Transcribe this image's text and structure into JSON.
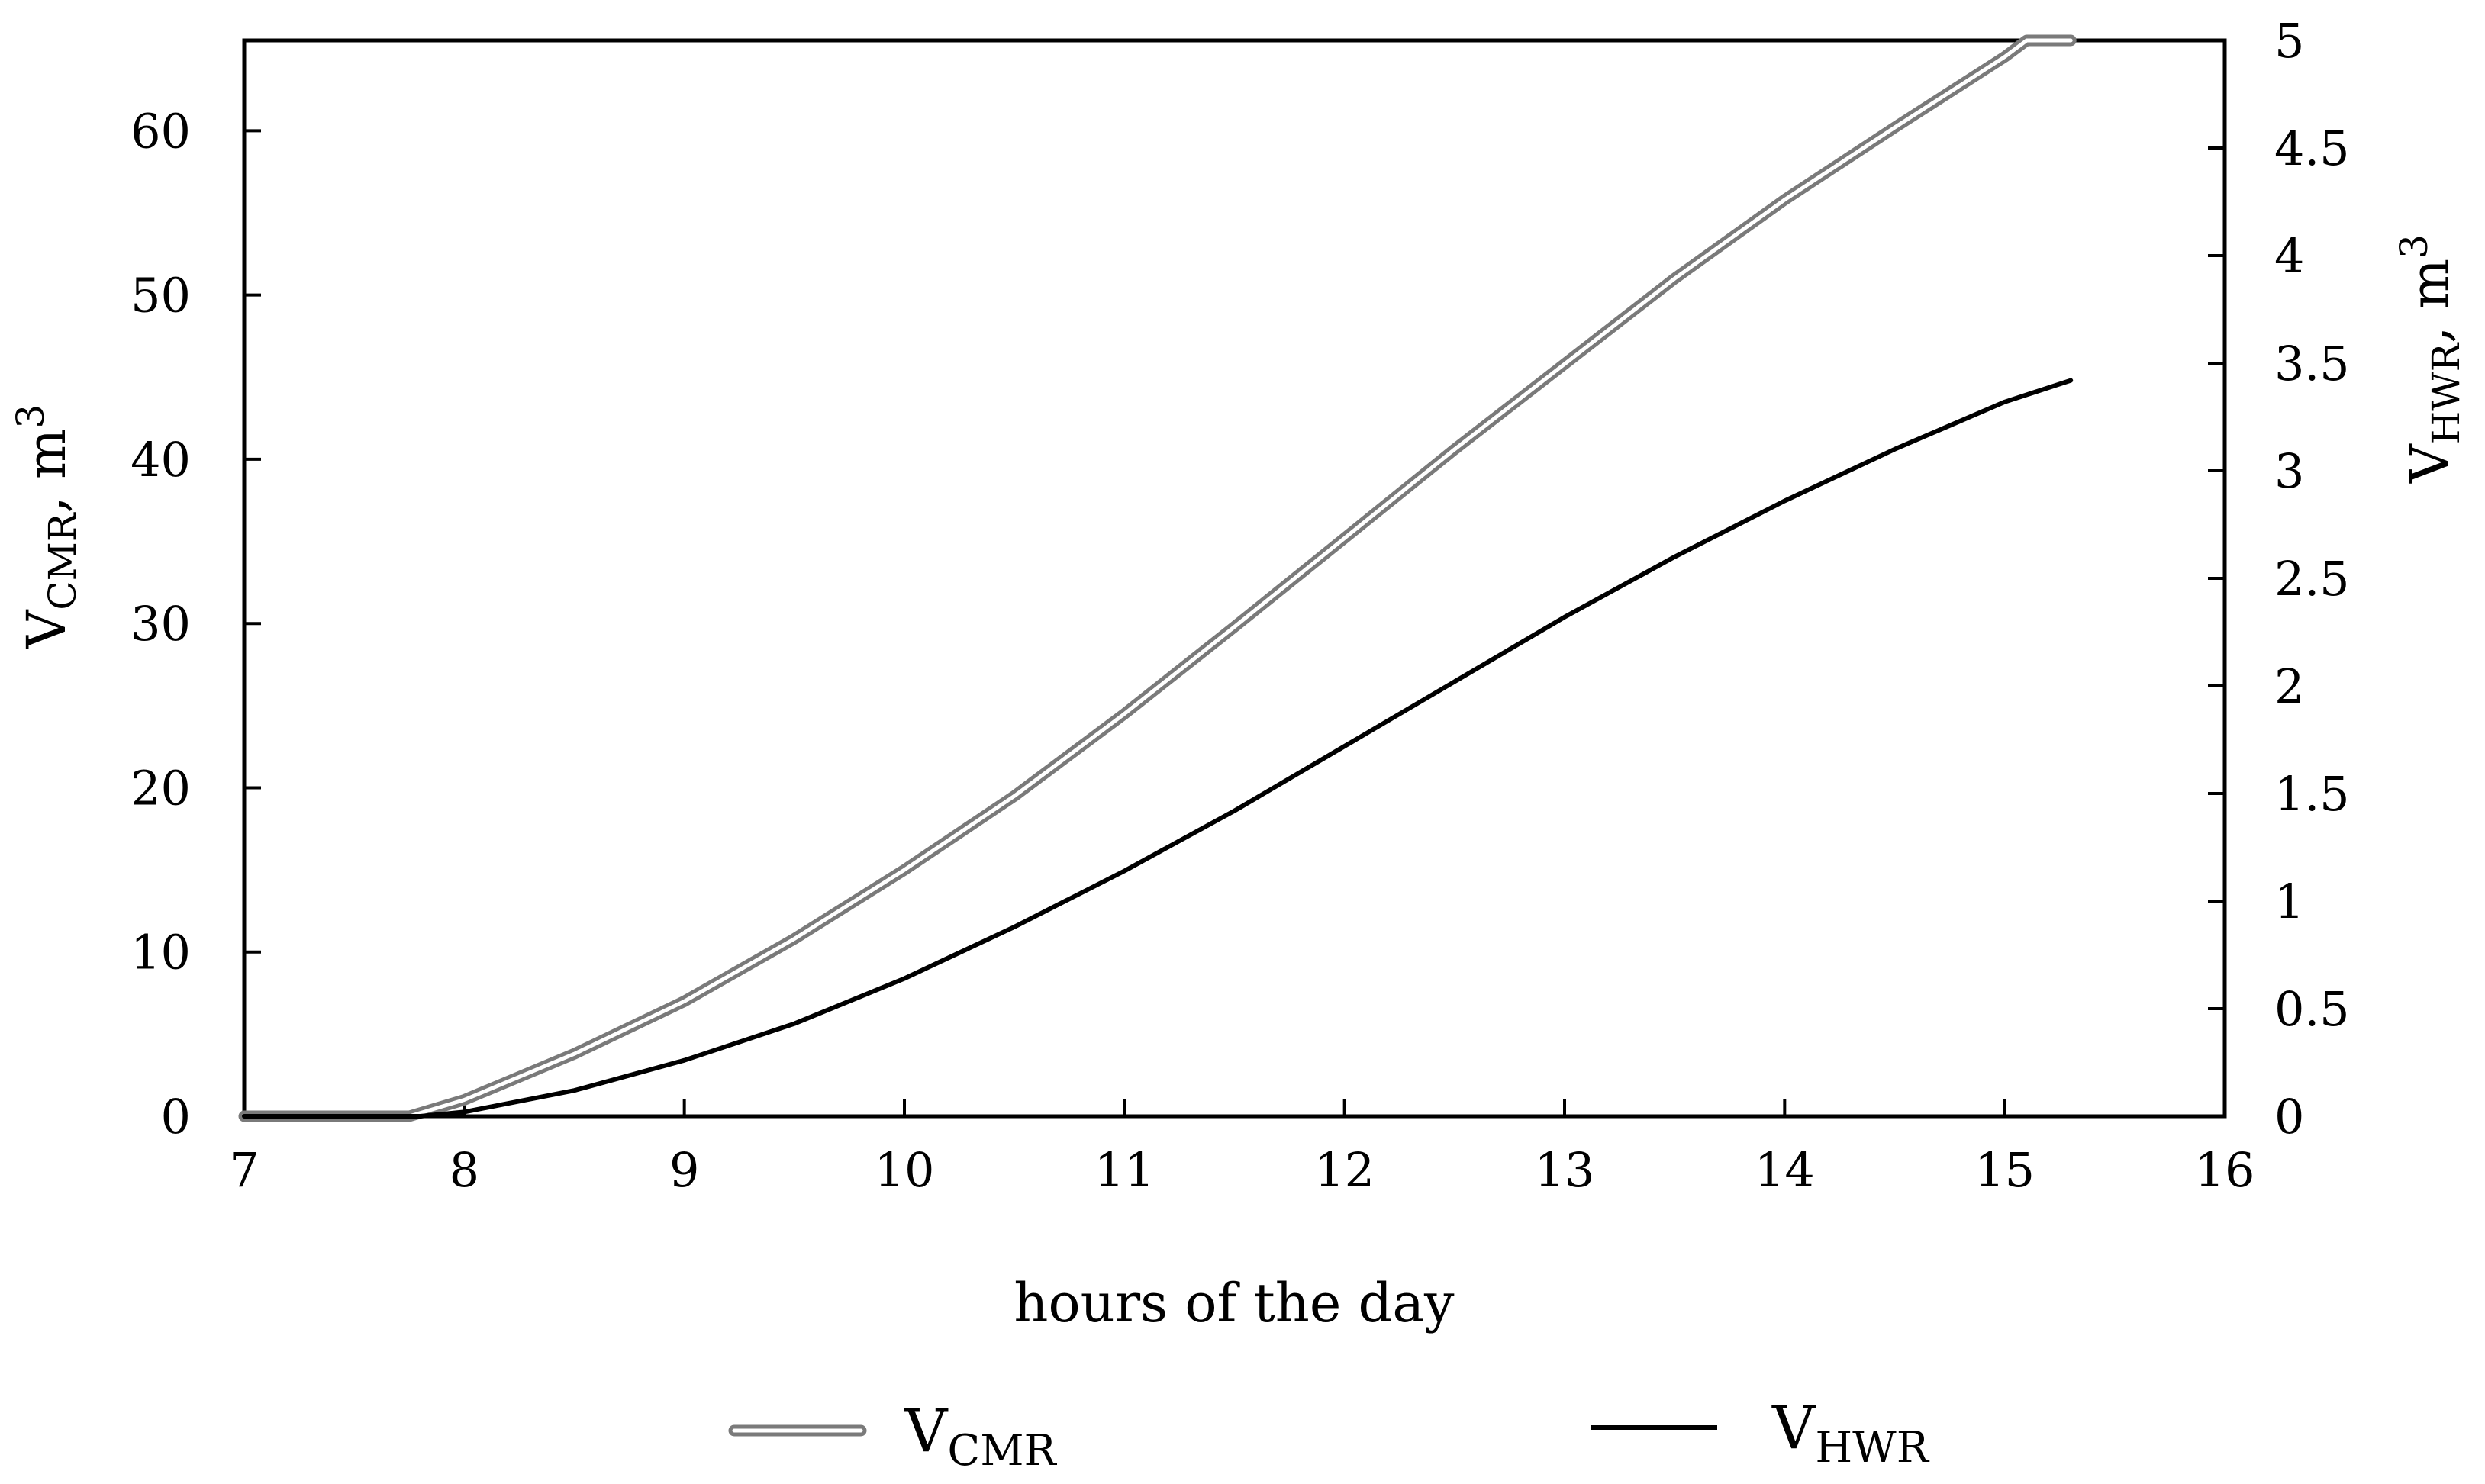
{
  "chart_data": {
    "type": "line",
    "xlabel": "hours of the day",
    "ylabel_left": {
      "main": "V",
      "sub": "CMR",
      "unit": ", m",
      "sup": "3"
    },
    "ylabel_right": {
      "main": "V",
      "sub": "HWR",
      "unit": ", m",
      "sup": "3"
    },
    "xlim": [
      7,
      16
    ],
    "ylim_left": [
      0,
      65.5
    ],
    "ylim_right": [
      0,
      5
    ],
    "x_ticks": [
      "7",
      "8",
      "9",
      "10",
      "11",
      "12",
      "13",
      "14",
      "15",
      "16"
    ],
    "y_left_ticks": [
      "0",
      "10",
      "20",
      "30",
      "40",
      "50",
      "60"
    ],
    "y_right_ticks": [
      "0",
      "0.5",
      "1",
      "1.5",
      "2",
      "2.5",
      "3",
      "3.5",
      "4",
      "4.5",
      "5"
    ],
    "grid": false,
    "legend_position": "bottom",
    "series": [
      {
        "name": "V_CMR",
        "legend": {
          "main": "V",
          "sub": "CMR"
        },
        "axis": "left",
        "style": "double",
        "color": "#7a7a7a",
        "x": [
          7.0,
          7.75,
          8.0,
          8.5,
          9.0,
          9.5,
          10.0,
          10.5,
          11.0,
          11.5,
          12.0,
          12.5,
          13.0,
          13.5,
          14.0,
          14.5,
          15.0,
          15.1,
          15.3
        ],
        "y": [
          0,
          0,
          1.0,
          3.8,
          7.0,
          10.8,
          15.0,
          19.5,
          24.5,
          29.8,
          35.2,
          40.6,
          45.8,
          51.0,
          55.8,
          60.2,
          64.5,
          65.5,
          65.5
        ]
      },
      {
        "name": "V_HWR",
        "legend": {
          "main": "V",
          "sub": "HWR"
        },
        "axis": "right",
        "style": "solid",
        "color": "#000000",
        "x": [
          7.0,
          7.8,
          8.0,
          8.5,
          9.0,
          9.5,
          10.0,
          10.5,
          11.0,
          11.5,
          12.0,
          12.5,
          13.0,
          13.5,
          14.0,
          14.5,
          15.0,
          15.3
        ],
        "y": [
          0,
          0,
          0.02,
          0.12,
          0.26,
          0.43,
          0.64,
          0.88,
          1.14,
          1.42,
          1.72,
          2.02,
          2.32,
          2.6,
          2.86,
          3.1,
          3.32,
          3.42
        ]
      }
    ]
  }
}
